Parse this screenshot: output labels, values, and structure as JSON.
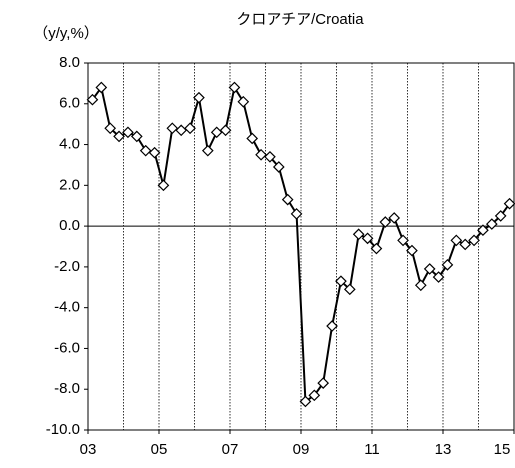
{
  "chart_data": {
    "type": "line",
    "title": "クロアチア/Croatia",
    "y_label": "（y/y,%）",
    "x": [
      2003.125,
      2003.375,
      2003.625,
      2003.875,
      2004.125,
      2004.375,
      2004.625,
      2004.875,
      2005.125,
      2005.375,
      2005.625,
      2005.875,
      2006.125,
      2006.375,
      2006.625,
      2006.875,
      2007.125,
      2007.375,
      2007.625,
      2007.875,
      2008.125,
      2008.375,
      2008.625,
      2008.875,
      2009.125,
      2009.375,
      2009.625,
      2009.875,
      2010.125,
      2010.375,
      2010.625,
      2010.875,
      2011.125,
      2011.375,
      2011.625,
      2011.875,
      2012.125,
      2012.375,
      2012.625,
      2012.875,
      2013.125,
      2013.375,
      2013.625,
      2013.875,
      2014.125,
      2014.375,
      2014.625,
      2014.875
    ],
    "series": [
      {
        "name": "Croatia",
        "color": "#000000",
        "values": [
          6.2,
          6.8,
          4.8,
          4.4,
          4.6,
          4.4,
          3.7,
          3.6,
          2.0,
          4.8,
          4.7,
          4.8,
          6.3,
          3.7,
          4.6,
          4.7,
          6.8,
          6.1,
          4.3,
          3.5,
          3.4,
          2.9,
          1.3,
          0.6,
          -8.6,
          -8.3,
          -7.7,
          -4.9,
          -2.7,
          -3.1,
          -0.4,
          -0.6,
          -1.1,
          0.2,
          0.4,
          -0.7,
          -1.2,
          -2.9,
          -2.1,
          -2.5,
          -1.9,
          -0.7,
          -0.9,
          -0.7,
          -0.2,
          0.1,
          0.5,
          1.1
        ]
      }
    ],
    "xlim": [
      2003,
      2015
    ],
    "xticks": [
      {
        "value": 2003,
        "label": "03"
      },
      {
        "value": 2005,
        "label": "05"
      },
      {
        "value": 2007,
        "label": "07"
      },
      {
        "value": 2009,
        "label": "09"
      },
      {
        "value": 2011,
        "label": "11"
      },
      {
        "value": 2013,
        "label": "13"
      },
      {
        "value": 2015,
        "label": "15"
      }
    ],
    "x_minor_grid": [
      2004,
      2006,
      2008,
      2010,
      2012,
      2014
    ],
    "ylim": [
      -10,
      8
    ],
    "yticks": [
      {
        "value": -10,
        "label": "-10.0"
      },
      {
        "value": -8,
        "label": "-8.0"
      },
      {
        "value": -6,
        "label": "-6.0"
      },
      {
        "value": -4,
        "label": "-4.0"
      },
      {
        "value": -2,
        "label": "-2.0"
      },
      {
        "value": 0,
        "label": "0.0"
      },
      {
        "value": 2,
        "label": "2.0"
      },
      {
        "value": 4,
        "label": "4.0"
      },
      {
        "value": 6,
        "label": "6.0"
      },
      {
        "value": 8,
        "label": "8.0"
      }
    ],
    "grid": true,
    "marker": "diamond"
  }
}
